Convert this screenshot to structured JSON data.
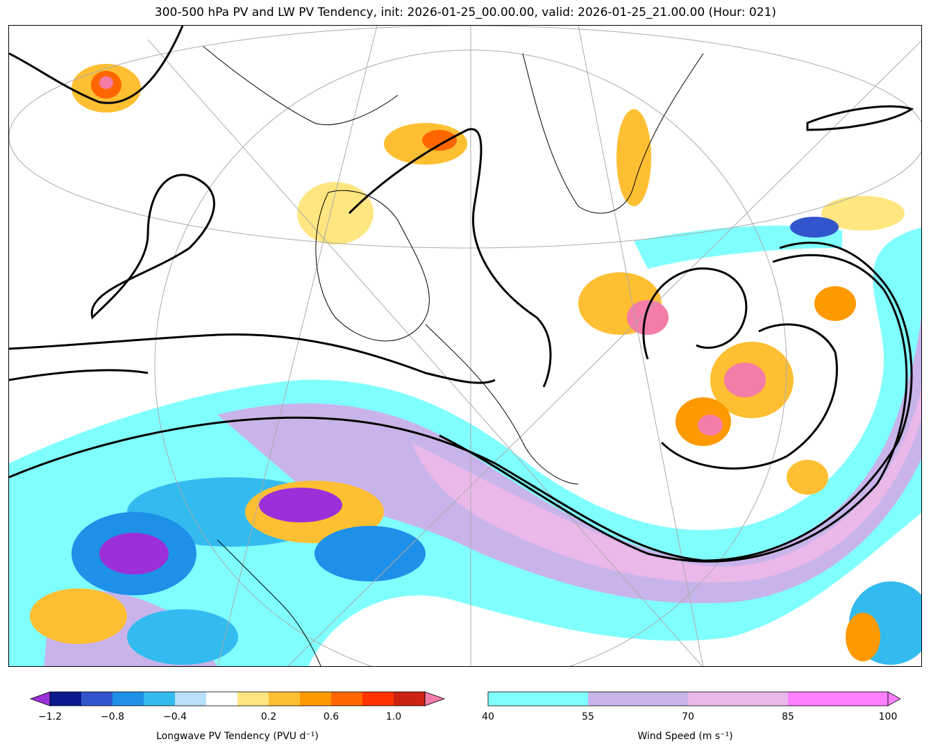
{
  "title": "300-500 hPa PV and LW PV Tendency, init: 2026-01-25_00.00.00, valid: 2026-01-25_21.00.00 (Hour: 021)",
  "colorbars": {
    "pv": {
      "label": "Longwave PV Tendency (PVU d⁻¹)",
      "ticks": [
        "−1.2",
        "−0.8",
        "−0.4",
        "0.2",
        "0.6",
        "1.0"
      ],
      "colors": [
        "#9b30d8",
        "#0b1a8f",
        "#3355cc",
        "#1e90e8",
        "#33bbf0",
        "#b9e0fb",
        "#ffffff",
        "#ffe680",
        "#ffbf33",
        "#ff9900",
        "#ff6600",
        "#ff3300",
        "#cc2211",
        "#f47ca8"
      ]
    },
    "wind": {
      "label": "Wind Speed (m s⁻¹)",
      "ticks": [
        "40",
        "55",
        "70",
        "85",
        "100"
      ],
      "colors": [
        "#80ffff",
        "#c8b4ea",
        "#ebb8ea",
        "#ff80ff"
      ]
    }
  }
}
